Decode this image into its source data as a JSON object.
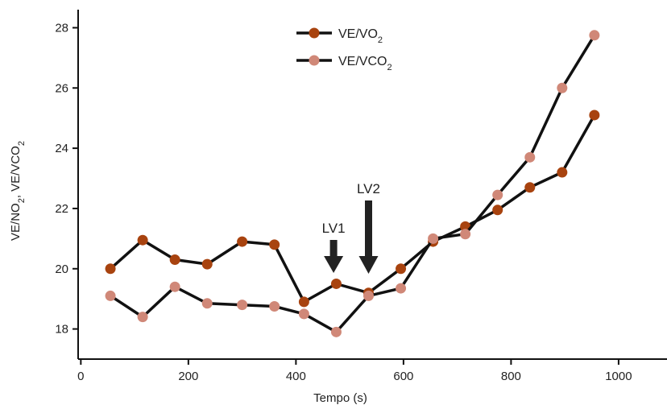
{
  "chart_data": {
    "type": "line",
    "xlabel": "Tempo (s)",
    "ylabel": {
      "parts": [
        {
          "text": "VE/NO",
          "sub": false
        },
        {
          "text": "2",
          "sub": true
        },
        {
          "text": ", VE/VCO",
          "sub": false
        },
        {
          "text": "2",
          "sub": true
        }
      ]
    },
    "xlim": [
      -5,
      1090
    ],
    "ylim": [
      17,
      28.6
    ],
    "xticks": [
      0,
      200,
      400,
      600,
      800,
      1000
    ],
    "yticks": [
      18,
      20,
      22,
      24,
      26,
      28
    ],
    "grid": false,
    "legend_position": "top-center",
    "series": [
      {
        "name": "VE/VO",
        "name_sub": "2",
        "color": "#a8430f",
        "x": [
          55,
          115,
          175,
          235,
          300,
          360,
          415,
          475,
          535,
          595,
          655,
          715,
          775,
          835,
          895,
          955
        ],
        "y": [
          20.0,
          20.95,
          20.3,
          20.15,
          20.9,
          20.8,
          18.9,
          19.5,
          19.2,
          20.0,
          20.9,
          21.4,
          21.95,
          22.7,
          23.2,
          25.1
        ]
      },
      {
        "name": "VE/VCO",
        "name_sub": "2",
        "color": "#d08878",
        "x": [
          55,
          115,
          175,
          235,
          300,
          360,
          415,
          475,
          535,
          595,
          655,
          715,
          775,
          835,
          895,
          955
        ],
        "y": [
          19.1,
          18.4,
          19.4,
          18.85,
          18.8,
          18.75,
          18.5,
          17.9,
          19.1,
          19.35,
          21.0,
          21.15,
          22.45,
          23.7,
          26.0,
          27.75
        ]
      }
    ],
    "annotations": [
      {
        "label": "LV1",
        "x": 470
      },
      {
        "label": "LV2",
        "x": 535
      }
    ]
  }
}
